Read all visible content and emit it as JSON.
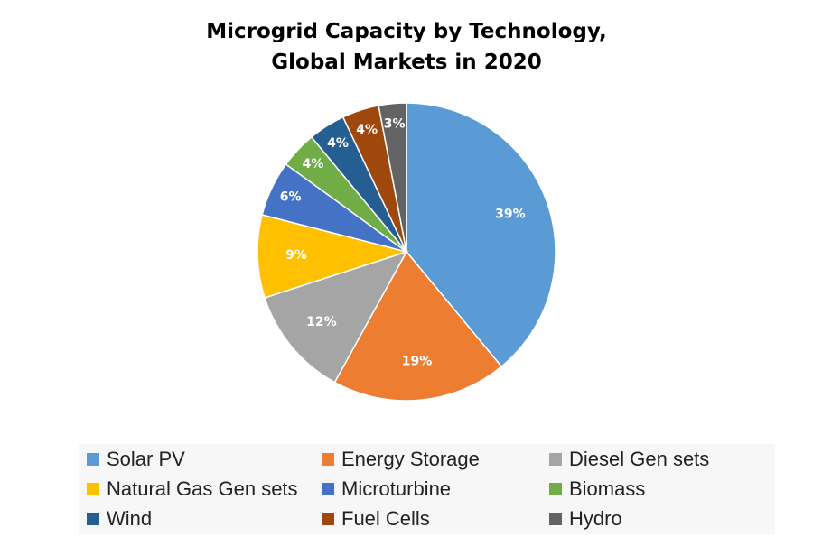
{
  "chart_data": {
    "type": "pie",
    "title_lines": [
      "Microgrid Capacity by Technology,",
      "Global Markets in 2020"
    ],
    "categories": [
      "Solar PV",
      "Energy Storage",
      "Diesel Gen sets",
      "Natural Gas Gen sets",
      "Microturbine",
      "Biomass",
      "Wind",
      "Fuel Cells",
      "Hydro"
    ],
    "values": [
      39,
      19,
      12,
      9,
      6,
      4,
      4,
      4,
      3
    ],
    "labels": [
      "39%",
      "19%",
      "12%",
      "9%",
      "6%",
      "4%",
      "4%",
      "4%",
      "3%"
    ],
    "colors": [
      "#5b9bd5",
      "#ed7d31",
      "#a5a5a5",
      "#ffc000",
      "#4472c4",
      "#70ad47",
      "#255e91",
      "#9e480e",
      "#636363"
    ],
    "legend_position": "bottom",
    "start_angle": "12 o'clock, clockwise"
  }
}
